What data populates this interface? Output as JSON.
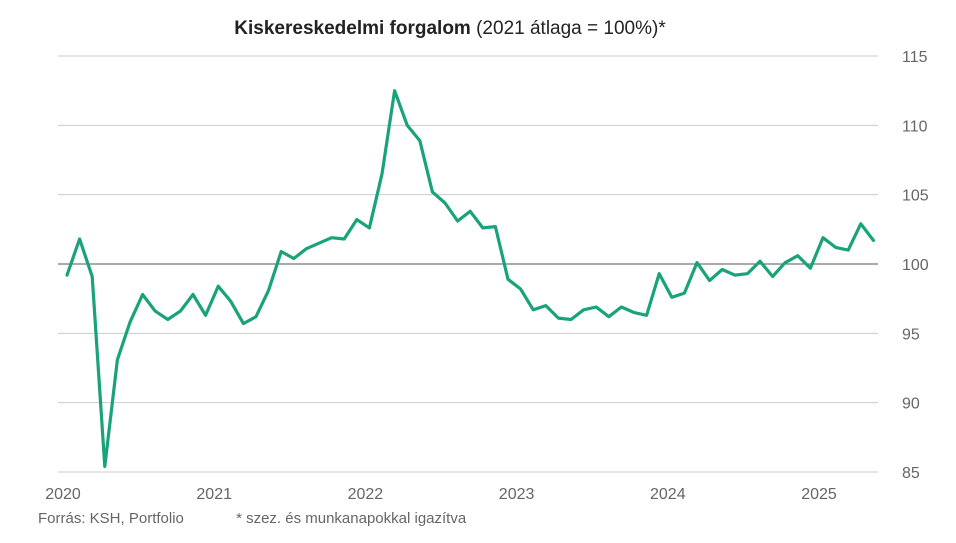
{
  "title_bold": "Kiskereskedelmi forgalom",
  "title_rest": " (2021 átlaga = 100%)*",
  "footer": {
    "source": "Forrás: KSH, Portfolio",
    "note": "* szez. és munkanapokkal igazítva"
  },
  "colors": {
    "line": "#1aa37a",
    "grid": "#cccccc",
    "baseline": "#555555",
    "text": "#666666"
  },
  "chart_data": {
    "type": "line",
    "title": "Kiskereskedelmi forgalom (2021 átlaga = 100%)*",
    "xlabel": "",
    "ylabel": "",
    "ylim": [
      85,
      115
    ],
    "yticks": [
      115,
      110,
      105,
      100,
      95,
      90,
      85
    ],
    "xticks": [
      "2020",
      "2021",
      "2022",
      "2023",
      "2024",
      "2025"
    ],
    "x_start": "2020-01",
    "grid": true,
    "reference_line": 100,
    "series": [
      {
        "values": [
          99.2,
          101.8,
          99.1,
          85.4,
          93.1,
          95.8,
          97.8,
          96.6,
          96.0,
          96.6,
          97.8,
          96.3,
          98.4,
          97.3,
          95.7,
          96.2,
          98.1,
          100.9,
          100.4,
          101.1,
          101.5,
          101.9,
          101.8,
          103.2,
          102.6,
          106.5,
          112.5,
          110.0,
          108.9,
          105.2,
          104.4,
          103.1,
          103.8,
          102.6,
          102.7,
          98.9,
          98.2,
          96.7,
          97.0,
          96.1,
          96.0,
          96.7,
          96.9,
          96.2,
          96.9,
          96.5,
          96.3,
          99.3,
          97.6,
          97.9,
          100.1,
          98.8,
          99.6,
          99.2,
          99.3,
          100.2,
          99.1,
          100.1,
          100.6,
          99.7,
          101.9,
          101.2,
          101.0,
          102.9,
          101.7
        ]
      }
    ]
  }
}
